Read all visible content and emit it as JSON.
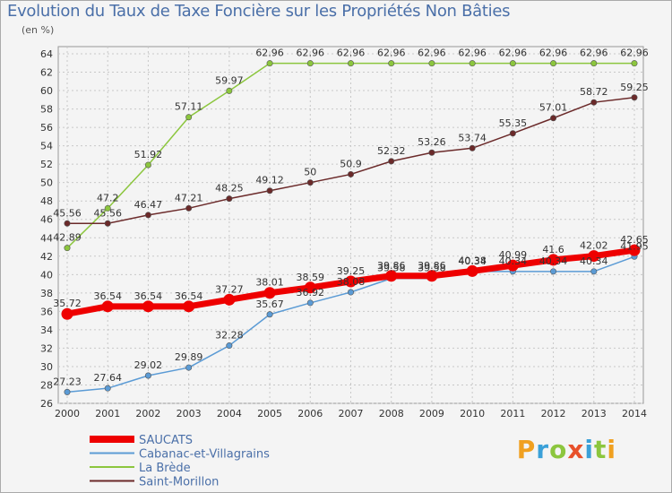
{
  "title": "Evolution du Taux de Taxe Foncière sur les Propriétés Non Bâties",
  "unit": "(en %)",
  "brand": "Proxiti",
  "chart_data": {
    "type": "line",
    "x": [
      "2000",
      "2001",
      "2002",
      "2003",
      "2004",
      "2005",
      "2006",
      "2007",
      "2008",
      "2009",
      "2010",
      "2011",
      "2012",
      "2013",
      "2014"
    ],
    "ylim": [
      26,
      64
    ],
    "yticks": [
      26,
      28,
      30,
      32,
      34,
      36,
      38,
      40,
      42,
      44,
      46,
      48,
      50,
      52,
      54,
      56,
      58,
      60,
      62,
      64
    ],
    "grid": true,
    "legend_position": "bottom-left",
    "series": [
      {
        "name": "La Brède",
        "color": "#8cc63e",
        "values": [
          42.89,
          47.2,
          51.92,
          57.11,
          59.97,
          62.96,
          62.96,
          62.96,
          62.96,
          62.96,
          62.96,
          62.96,
          62.96,
          62.96,
          62.96
        ],
        "labels": [
          "42.89",
          "47.2",
          "51.92",
          "57.11",
          "59.97",
          "62.96",
          "62.96",
          "62.96",
          "62.96",
          "62.96",
          "62.96",
          "62.96",
          "62.96",
          "62.96",
          "62.96"
        ]
      },
      {
        "name": "Saint-Morillon",
        "color": "#6b2a2a",
        "values": [
          45.56,
          45.56,
          46.47,
          47.21,
          48.25,
          49.12,
          50,
          50.9,
          52.32,
          53.26,
          53.74,
          55.35,
          57.01,
          58.72,
          59.25
        ],
        "labels": [
          "45.56",
          "45.56",
          "46.47",
          "47.21",
          "48.25",
          "49.12",
          "50",
          "50.9",
          "52.32",
          "53.26",
          "53.74",
          "55.35",
          "57.01",
          "58.72",
          "59.25"
        ]
      },
      {
        "name": "Cabanac-et-Villagrains",
        "color": "#5b9bd5",
        "values": [
          27.23,
          27.64,
          29.02,
          29.89,
          32.28,
          35.67,
          36.92,
          38.08,
          39.58,
          39.58,
          40.34,
          40.34,
          40.34,
          40.34,
          41.95
        ],
        "labels": [
          "27.23",
          "27.64",
          "29.02",
          "29.89",
          "32.28",
          "35.67",
          "36.92",
          "38.08",
          "39.58",
          "39.58",
          "40.34",
          "40.34",
          "40.34",
          "40.34",
          "41.95"
        ]
      },
      {
        "name": "SAUCATS",
        "color": "#ee0000",
        "values": [
          35.72,
          36.54,
          36.54,
          36.54,
          37.27,
          38.01,
          38.59,
          39.25,
          39.86,
          39.86,
          40.38,
          40.99,
          41.6,
          42.02,
          42.65
        ],
        "labels": [
          "35.72",
          "36.54",
          "36.54",
          "36.54",
          "37.27",
          "38.01",
          "38.59",
          "39.25",
          "39.86",
          "39.86",
          "40.38",
          "40.99",
          "41.6",
          "42.02",
          "42.65"
        ]
      }
    ],
    "legend": [
      "SAUCATS",
      "Cabanac-et-Villagrains",
      "La Brède",
      "Saint-Morillon"
    ]
  }
}
